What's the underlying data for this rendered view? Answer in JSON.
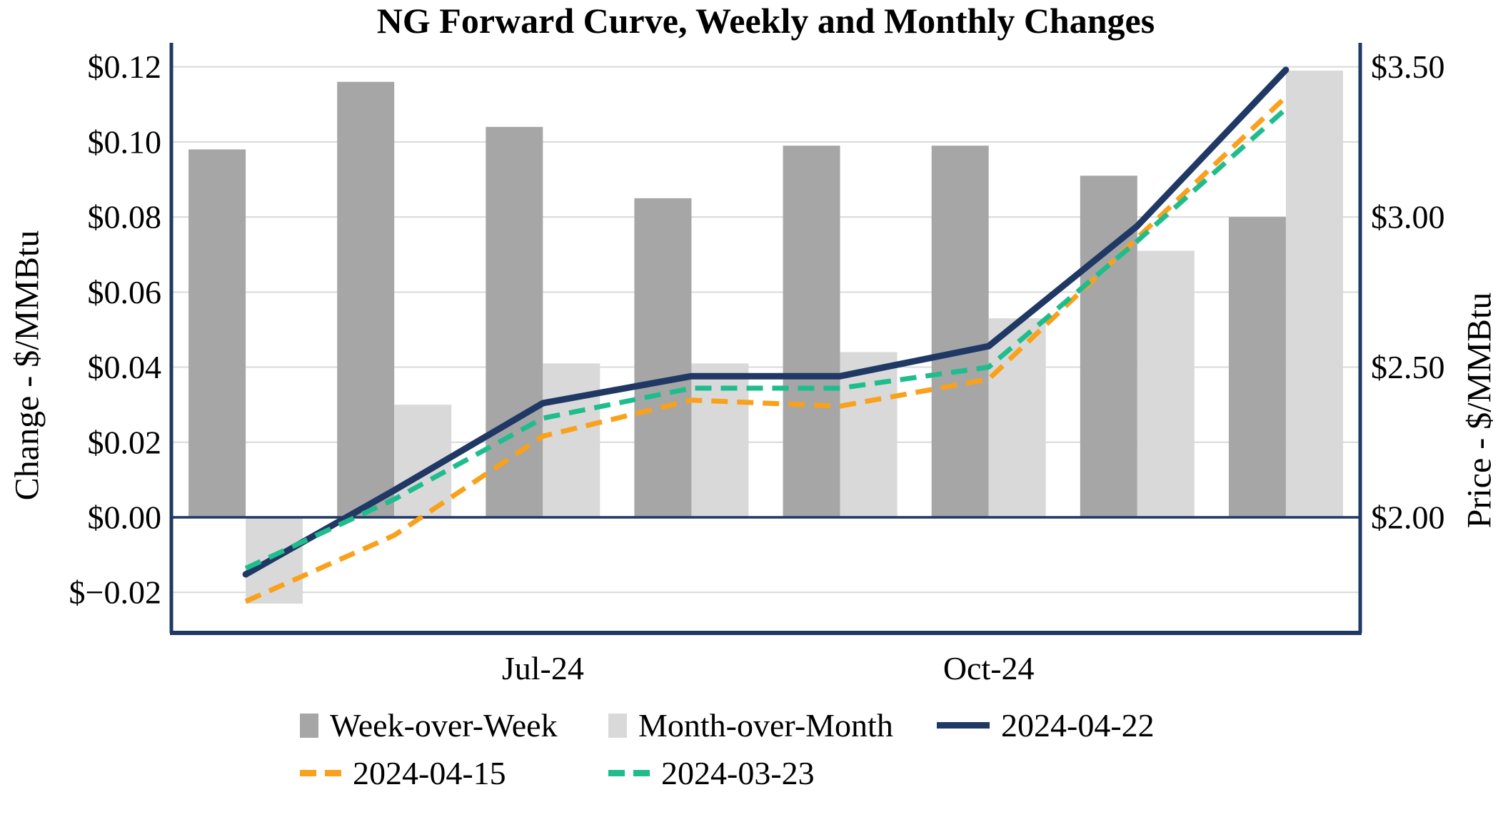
{
  "title": "NG Forward Curve, Weekly and Monthly Changes",
  "chart_data": {
    "type": "combo-bar-line",
    "categories": [
      "",
      "",
      "Jul-24",
      "",
      "",
      "Oct-24",
      "",
      ""
    ],
    "x_tick_labels": [
      {
        "group_index": 2,
        "label": "Jul-24"
      },
      {
        "group_index": 5,
        "label": "Oct-24"
      }
    ],
    "bar_series": [
      {
        "name": "Week-over-Week",
        "axis": "left",
        "color": "#A6A6A6",
        "values": [
          0.098,
          0.116,
          0.104,
          0.085,
          0.099,
          0.099,
          0.091,
          0.08
        ]
      },
      {
        "name": "Month-over-Month",
        "axis": "left",
        "color": "#D9D9D9",
        "values": [
          -0.023,
          0.03,
          0.041,
          0.041,
          0.044,
          0.053,
          0.071,
          0.119
        ]
      }
    ],
    "line_series": [
      {
        "name": "2024-04-22",
        "axis": "right",
        "color": "#1F3864",
        "style": "solid",
        "values": [
          1.81,
          2.09,
          2.38,
          2.47,
          2.47,
          2.57,
          2.97,
          3.49
        ]
      },
      {
        "name": "2024-04-15",
        "axis": "right",
        "color": "#F9A11B",
        "style": "dashed",
        "values": [
          1.72,
          1.94,
          2.27,
          2.39,
          2.37,
          2.46,
          2.93,
          3.4
        ]
      },
      {
        "name": "2024-03-23",
        "axis": "right",
        "color": "#1FBD8D",
        "style": "dashed",
        "values": [
          1.83,
          2.06,
          2.33,
          2.43,
          2.43,
          2.5,
          2.92,
          3.36
        ]
      }
    ],
    "axes": {
      "left": {
        "title": "Change - $/MMBtu",
        "range": [
          -0.0308,
          0.1264
        ],
        "ticks": [
          {
            "v": 0.12,
            "label": "$0.12"
          },
          {
            "v": 0.1,
            "label": "$0.10"
          },
          {
            "v": 0.08,
            "label": "$0.08"
          },
          {
            "v": 0.06,
            "label": "$0.06"
          },
          {
            "v": 0.04,
            "label": "$0.04"
          },
          {
            "v": 0.02,
            "label": "$0.02"
          },
          {
            "v": 0.0,
            "label": "$0.00"
          },
          {
            "v": -0.02,
            "label": "$−0.02"
          }
        ]
      },
      "right": {
        "title": "Price - $/MMBtu",
        "range": [
          1.615,
          3.58
        ],
        "ticks": [
          {
            "v": 3.5,
            "label": "$3.50"
          },
          {
            "v": 3.0,
            "label": "$3.00"
          },
          {
            "v": 2.5,
            "label": "$2.50"
          },
          {
            "v": 2.0,
            "label": "$2.00"
          }
        ]
      }
    },
    "grid": {
      "color": "#D9D9D9",
      "zero_line_color": "#1F3864",
      "axis_line_color": "#1F3864"
    },
    "legend_rows": [
      [
        "Week-over-Week",
        "Month-over-Month",
        "2024-04-22"
      ],
      [
        "2024-04-15",
        "2024-03-23"
      ]
    ]
  }
}
